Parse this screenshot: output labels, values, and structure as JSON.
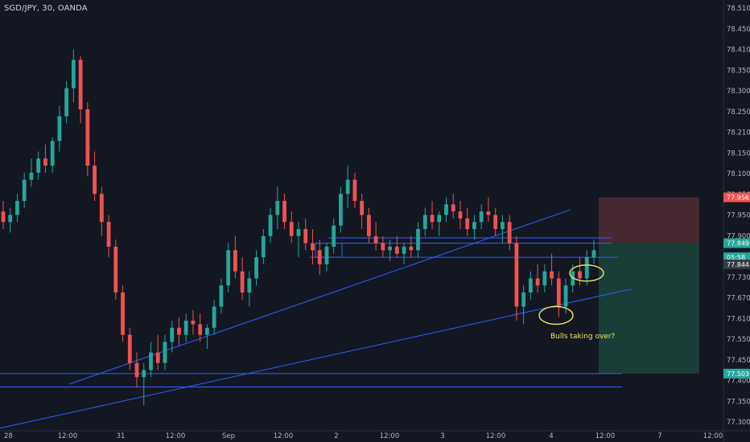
{
  "header": {
    "symbol": "SGD/JPY, 30, OANDA"
  },
  "colors": {
    "background": "#131722",
    "up": "#26a69a",
    "down": "#ef5350",
    "trendline": "#2962ff",
    "stop_zone": "#4a2a33",
    "target_zone": "#1a3f3a",
    "annotation": "#f5e663",
    "axis_text": "#b2b5be"
  },
  "chart_data": {
    "type": "candlestick",
    "title": "SGD/JPY, 30, OANDA",
    "ylim": [
      77.33,
      78.55
    ],
    "x_tick_labels": [
      "28",
      "12:00",
      "31",
      "12:00",
      "Sep",
      "12:00",
      "2",
      "12:00",
      "3",
      "12:00",
      "4",
      "12:00",
      "7",
      "12:00"
    ],
    "y_tick_labels": [
      "78.510",
      "78.450",
      "78.410",
      "78.350",
      "78.300",
      "78.250",
      "78.210",
      "78.150",
      "78.100",
      "78.050",
      "77.950",
      "77.900",
      "77.790",
      "77.730",
      "77.670",
      "77.610",
      "77.550",
      "77.450",
      "77.400",
      "77.350",
      "77.300"
    ],
    "price_tags": [
      {
        "label": "77.956",
        "role": "stop",
        "value": 77.99,
        "color": "#ef5350"
      },
      {
        "label": "77.849",
        "role": "entry",
        "value": 77.86,
        "color": "#26a69a"
      },
      {
        "label": "05:58",
        "role": "countdown",
        "value": 77.82,
        "color": "#26a69a"
      },
      {
        "label": "77.844",
        "role": "last-price",
        "value": 77.8,
        "color": "#363a45"
      },
      {
        "label": "77.503",
        "role": "target",
        "value": 77.49,
        "color": "#26a69a"
      }
    ],
    "horizontal_levels": [
      77.875,
      77.86,
      77.82,
      77.49,
      77.452
    ],
    "candles": [
      [
        77.95,
        77.98,
        77.9,
        77.92
      ],
      [
        77.92,
        77.96,
        77.89,
        77.94
      ],
      [
        77.94,
        78.0,
        77.92,
        77.98
      ],
      [
        77.98,
        78.06,
        77.96,
        78.04
      ],
      [
        78.04,
        78.1,
        78.02,
        78.06
      ],
      [
        78.06,
        78.12,
        78.04,
        78.1
      ],
      [
        78.1,
        78.14,
        78.06,
        78.08
      ],
      [
        78.08,
        78.16,
        78.06,
        78.15
      ],
      [
        78.15,
        78.25,
        78.12,
        78.22
      ],
      [
        78.22,
        78.32,
        78.2,
        78.3
      ],
      [
        78.3,
        78.41,
        78.26,
        78.38
      ],
      [
        78.38,
        78.39,
        78.2,
        78.24
      ],
      [
        78.24,
        78.26,
        78.05,
        78.08
      ],
      [
        78.08,
        78.12,
        77.98,
        78.0
      ],
      [
        78.0,
        78.02,
        77.88,
        77.92
      ],
      [
        77.92,
        77.94,
        77.82,
        77.85
      ],
      [
        77.85,
        77.87,
        77.7,
        77.72
      ],
      [
        77.72,
        77.74,
        77.58,
        77.6
      ],
      [
        77.6,
        77.62,
        77.5,
        77.52
      ],
      [
        77.52,
        77.55,
        77.45,
        77.48
      ],
      [
        77.48,
        77.52,
        77.4,
        77.5
      ],
      [
        77.5,
        77.58,
        77.48,
        77.55
      ],
      [
        77.55,
        77.6,
        77.5,
        77.52
      ],
      [
        77.52,
        77.6,
        77.5,
        77.58
      ],
      [
        77.58,
        77.64,
        77.55,
        77.62
      ],
      [
        77.62,
        77.65,
        77.57,
        77.6
      ],
      [
        77.6,
        77.66,
        77.58,
        77.64
      ],
      [
        77.64,
        77.67,
        77.6,
        77.63
      ],
      [
        77.63,
        77.66,
        77.58,
        77.6
      ],
      [
        77.6,
        77.63,
        77.56,
        77.62
      ],
      [
        77.62,
        77.7,
        77.6,
        77.68
      ],
      [
        77.68,
        77.76,
        77.66,
        77.74
      ],
      [
        77.74,
        77.86,
        77.72,
        77.84
      ],
      [
        77.84,
        77.88,
        77.76,
        77.78
      ],
      [
        77.78,
        77.82,
        77.7,
        77.72
      ],
      [
        77.72,
        77.78,
        77.68,
        77.76
      ],
      [
        77.76,
        77.84,
        77.74,
        77.82
      ],
      [
        77.82,
        77.9,
        77.8,
        77.88
      ],
      [
        77.88,
        77.96,
        77.86,
        77.94
      ],
      [
        77.94,
        78.02,
        77.9,
        77.98
      ],
      [
        77.98,
        78.0,
        77.9,
        77.92
      ],
      [
        77.92,
        77.95,
        77.86,
        77.88
      ],
      [
        77.88,
        77.92,
        77.82,
        77.9
      ],
      [
        77.9,
        77.93,
        77.84,
        77.86
      ],
      [
        77.86,
        77.9,
        77.8,
        77.84
      ],
      [
        77.84,
        77.87,
        77.77,
        77.8
      ],
      [
        77.8,
        77.86,
        77.78,
        77.85
      ],
      [
        77.85,
        77.93,
        77.83,
        77.91
      ],
      [
        77.91,
        78.02,
        77.89,
        78.0
      ],
      [
        78.0,
        78.08,
        77.96,
        78.04
      ],
      [
        78.04,
        78.06,
        77.96,
        77.98
      ],
      [
        77.98,
        78.0,
        77.9,
        77.94
      ],
      [
        77.94,
        77.96,
        77.86,
        77.88
      ],
      [
        77.88,
        77.92,
        77.84,
        77.86
      ],
      [
        77.86,
        77.88,
        77.82,
        77.84
      ],
      [
        77.84,
        77.87,
        77.81,
        77.85
      ],
      [
        77.85,
        77.88,
        77.82,
        77.83
      ],
      [
        77.83,
        77.86,
        77.8,
        77.85
      ],
      [
        77.85,
        77.88,
        77.82,
        77.84
      ],
      [
        77.84,
        77.92,
        77.82,
        77.9
      ],
      [
        77.9,
        77.96,
        77.88,
        77.94
      ],
      [
        77.94,
        77.98,
        77.9,
        77.92
      ],
      [
        77.92,
        77.95,
        77.88,
        77.94
      ],
      [
        77.94,
        77.99,
        77.92,
        77.97
      ],
      [
        77.97,
        78.0,
        77.93,
        77.95
      ],
      [
        77.95,
        77.98,
        77.9,
        77.93
      ],
      [
        77.93,
        77.96,
        77.88,
        77.9
      ],
      [
        77.9,
        77.94,
        77.87,
        77.92
      ],
      [
        77.92,
        77.97,
        77.9,
        77.95
      ],
      [
        77.95,
        77.99,
        77.92,
        77.94
      ],
      [
        77.94,
        77.96,
        77.88,
        77.9
      ],
      [
        77.9,
        77.94,
        77.86,
        77.92
      ],
      [
        77.92,
        77.94,
        77.84,
        77.86
      ],
      [
        77.86,
        77.88,
        77.64,
        77.68
      ],
      [
        77.68,
        77.74,
        77.63,
        77.72
      ],
      [
        77.72,
        77.78,
        77.7,
        77.76
      ],
      [
        77.76,
        77.8,
        77.72,
        77.74
      ],
      [
        77.74,
        77.8,
        77.72,
        77.78
      ],
      [
        77.78,
        77.83,
        77.74,
        77.76
      ],
      [
        77.76,
        77.78,
        77.65,
        77.68
      ],
      [
        77.68,
        77.76,
        77.66,
        77.74
      ],
      [
        77.74,
        77.8,
        77.72,
        77.78
      ],
      [
        77.78,
        77.82,
        77.74,
        77.76
      ],
      [
        77.76,
        77.84,
        77.74,
        77.82
      ],
      [
        77.82,
        77.87,
        77.8,
        77.84
      ]
    ]
  },
  "annotations": {
    "note": "Bulls taking over?"
  }
}
